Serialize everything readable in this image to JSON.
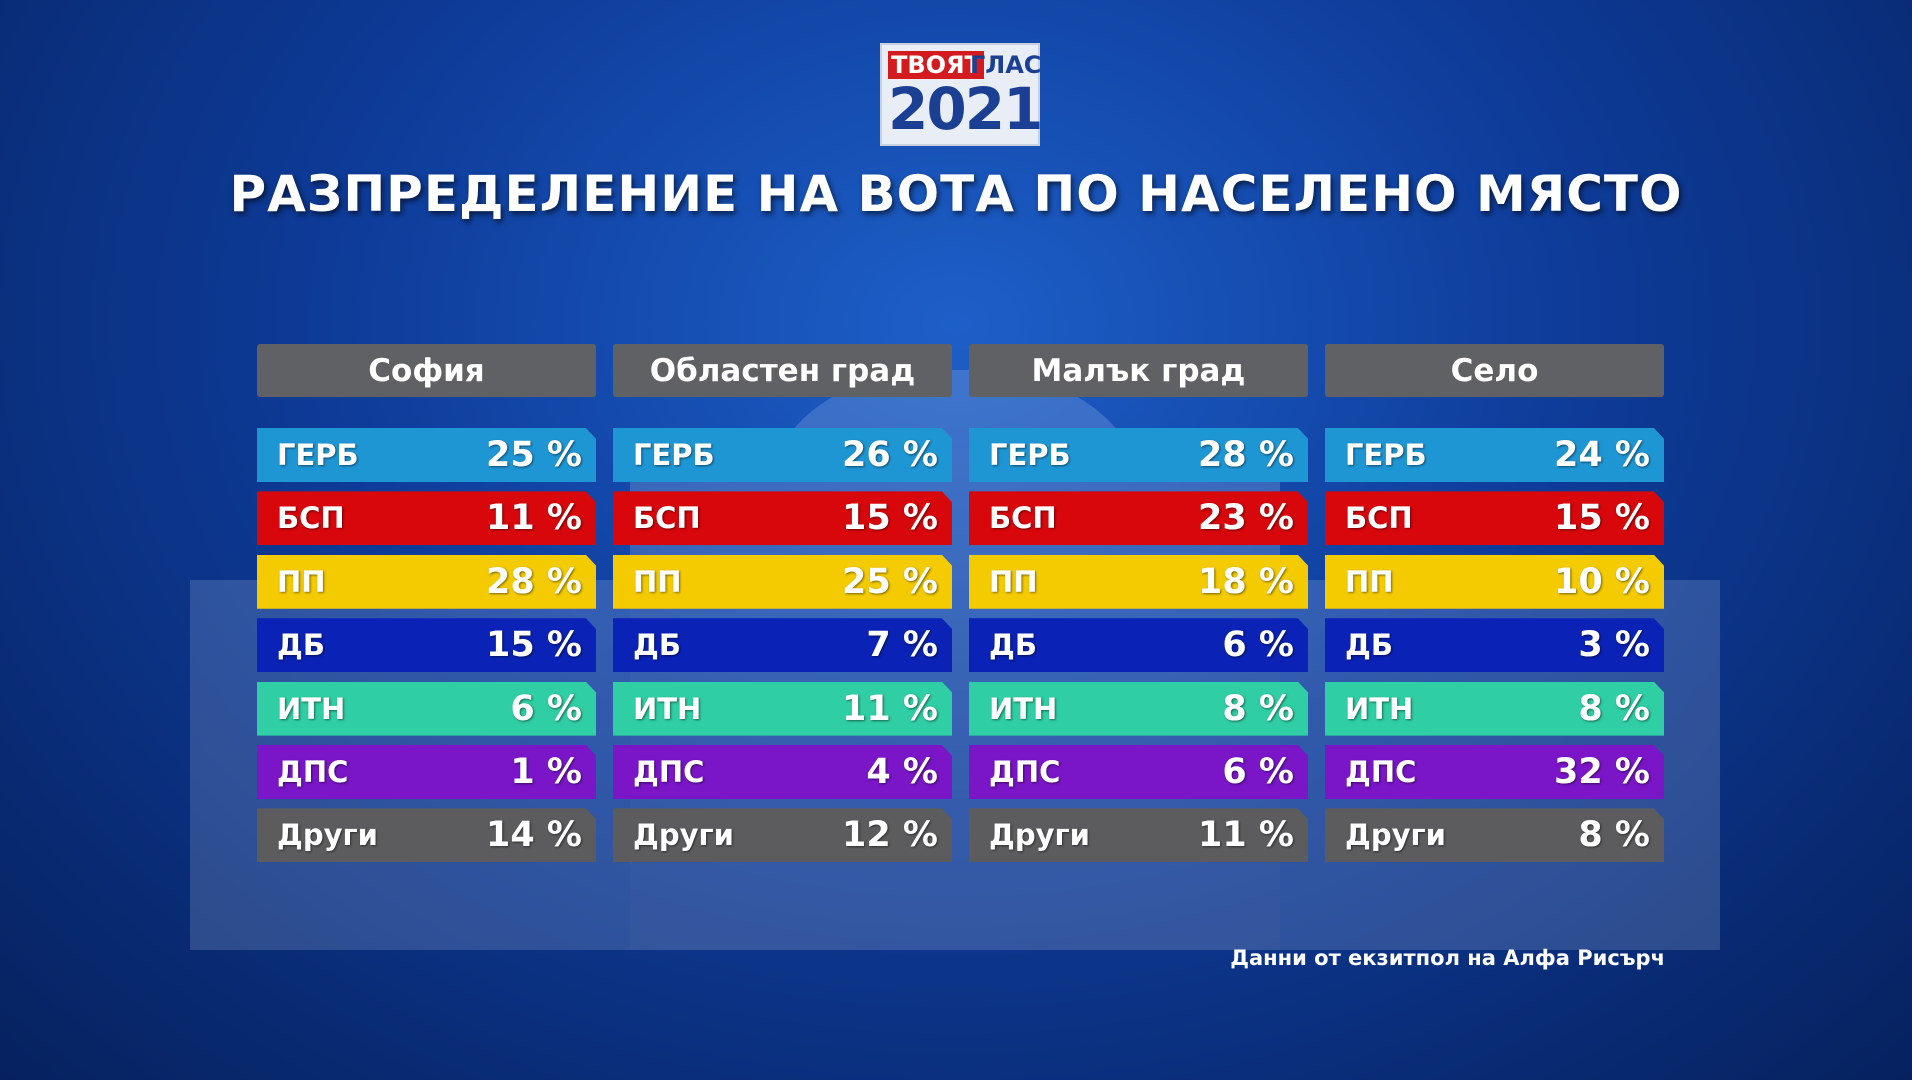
{
  "logo": {
    "line1a": "ТВОЯТ",
    "line1b": "ГЛАС",
    "line2": "2021"
  },
  "title": "РАЗПРЕДЕЛЕНИЕ НА ВОТА ПО НАСЕЛЕНО МЯСТО",
  "table": {
    "columns": [
      "София",
      "Областен град",
      "Малък град",
      "Село"
    ],
    "rows": [
      {
        "party": "ГЕРБ",
        "color": "#1f96d4",
        "cells": [
          "25 %",
          "26 %",
          "28 %",
          "24 %"
        ]
      },
      {
        "party": "БСП",
        "color": "#d8070c",
        "cells": [
          "11 %",
          "15 %",
          "23 %",
          "15 %"
        ]
      },
      {
        "party": "ПП",
        "color": "#f4cb00",
        "cells": [
          "28 %",
          "25 %",
          "18 %",
          "10 %"
        ]
      },
      {
        "party": "ДБ",
        "color": "#0a22b6",
        "cells": [
          "15 %",
          "7 %",
          "6 %",
          "3 %"
        ]
      },
      {
        "party": "ИТН",
        "color": "#2fcea4",
        "cells": [
          "6 %",
          "11 %",
          "8 %",
          "8 %"
        ]
      },
      {
        "party": "ДПС",
        "color": "#7a15c8",
        "cells": [
          "1 %",
          "4 %",
          "6 %",
          "32 %"
        ]
      },
      {
        "party": "Други",
        "color": "#5c5c5e",
        "cells": [
          "14 %",
          "12 %",
          "11 %",
          "8 %"
        ]
      }
    ]
  },
  "source": "Данни от екзитпол на Алфа Рисърч"
}
